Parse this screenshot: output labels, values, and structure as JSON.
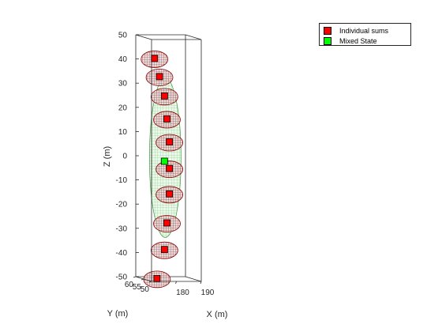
{
  "chart_data": {
    "type": "scatter",
    "view": "3d",
    "title": "",
    "xlabel": "X (m)",
    "ylabel": "Y (m)",
    "zlabel": "Z (m)",
    "xlim": [
      170,
      190
    ],
    "ylim": [
      50,
      60
    ],
    "zlim": [
      -50,
      50
    ],
    "xticks": [
      "180",
      "190"
    ],
    "yticks": [
      "50",
      "55",
      "60"
    ],
    "zticks": [
      "50",
      "40",
      "30",
      "20",
      "10",
      "0",
      "-10",
      "-20",
      "-30",
      "-40",
      "-50"
    ],
    "legend_position": "top-right",
    "series": [
      {
        "name": "Individual sums",
        "color": "#ff0000",
        "marker": "square",
        "ellipsoid_color": "#8b0000",
        "points": [
          {
            "x": 175,
            "y": 56,
            "z": 41
          },
          {
            "x": 177,
            "y": 56,
            "z": 33.5
          },
          {
            "x": 179,
            "y": 56,
            "z": 25.5
          },
          {
            "x": 180,
            "y": 56,
            "z": 16
          },
          {
            "x": 181,
            "y": 56,
            "z": 6.5
          },
          {
            "x": 181,
            "y": 56,
            "z": -4.5
          },
          {
            "x": 181,
            "y": 56,
            "z": -15
          },
          {
            "x": 180,
            "y": 56,
            "z": -27
          },
          {
            "x": 179,
            "y": 56,
            "z": -38
          },
          {
            "x": 176,
            "y": 56,
            "z": -50
          }
        ]
      },
      {
        "name": "Mixed State",
        "color": "#00ff00",
        "marker": "square",
        "ellipsoid_color": "#2e8b2e",
        "points": [
          {
            "x": 179,
            "y": 56,
            "z": -1.5
          }
        ]
      }
    ]
  }
}
